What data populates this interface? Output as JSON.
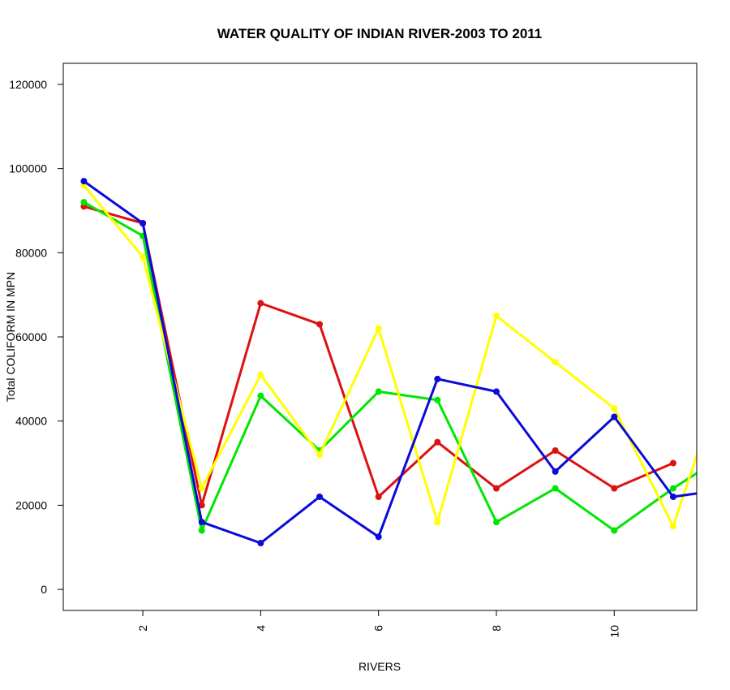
{
  "chart_data": {
    "type": "line",
    "title": "WATER QUALITY OF INDIAN RIVER-2003 TO 2011",
    "xlabel": "RIVERS",
    "ylabel": "Total COLIFORM IN MPN",
    "xlim": [
      0.65,
      11.4
    ],
    "ylim": [
      -5000,
      125000
    ],
    "x_ticks": [
      2,
      4,
      6,
      8,
      10
    ],
    "y_ticks": [
      0,
      20000,
      40000,
      60000,
      80000,
      100000,
      120000
    ],
    "x": [
      1,
      2,
      3,
      4,
      5,
      6,
      7,
      8,
      9,
      10,
      11,
      12
    ],
    "series": [
      {
        "color": "#dd1111",
        "values": [
          91000,
          87000,
          20000,
          68000,
          63000,
          22000,
          35000,
          24000,
          33000,
          24000,
          30000,
          null
        ]
      },
      {
        "color": "#00e600",
        "values": [
          92000,
          84000,
          14000,
          46000,
          33000,
          47000,
          45000,
          16000,
          24000,
          14000,
          24000,
          33000
        ]
      },
      {
        "color": "#ffff00",
        "values": [
          96000,
          79000,
          24000,
          51000,
          32000,
          62000,
          16000,
          65000,
          54000,
          43000,
          15000,
          57000
        ]
      },
      {
        "color": "#0a0adb",
        "values": [
          97000,
          87000,
          16000,
          11000,
          22000,
          12500,
          50000,
          47000,
          28000,
          41000,
          22000,
          24000
        ]
      }
    ]
  }
}
